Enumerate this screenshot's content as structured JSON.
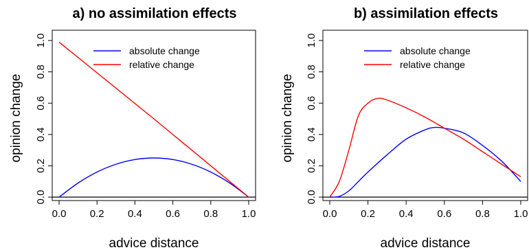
{
  "chart_data": [
    {
      "type": "line",
      "title": "a) no assimilation effects",
      "xlabel": "advice distance",
      "ylabel": "opinion change",
      "xlim": [
        0.0,
        1.0
      ],
      "ylim": [
        0.0,
        1.0
      ],
      "xticks": [
        "0.0",
        "0.2",
        "0.4",
        "0.6",
        "0.8",
        "1.0"
      ],
      "yticks": [
        "0.0",
        "0.2",
        "0.4",
        "0.6",
        "0.8",
        "1.0"
      ],
      "legend": "top-right",
      "grid": false,
      "horizontal_reference": 0.0,
      "series": [
        {
          "name": "absolute change",
          "color": "#0000ff",
          "x": [
            0.0,
            0.1,
            0.2,
            0.3,
            0.4,
            0.5,
            0.6,
            0.7,
            0.8,
            0.9,
            1.0
          ],
          "y": [
            0.0,
            0.09,
            0.16,
            0.21,
            0.24,
            0.25,
            0.24,
            0.21,
            0.16,
            0.09,
            0.0
          ]
        },
        {
          "name": "relative change",
          "color": "#ff0000",
          "x": [
            0.0,
            0.5,
            1.0
          ],
          "y": [
            0.99,
            0.5,
            0.0
          ]
        }
      ]
    },
    {
      "type": "line",
      "title": "b) assimilation effects",
      "xlabel": "advice distance",
      "ylabel": "opinion change",
      "xlim": [
        0.0,
        1.0
      ],
      "ylim": [
        0.0,
        1.0
      ],
      "xticks": [
        "0.0",
        "0.2",
        "0.4",
        "0.6",
        "0.8",
        "1.0"
      ],
      "yticks": [
        "0.0",
        "0.2",
        "0.4",
        "0.6",
        "0.8",
        "1.0"
      ],
      "legend": "top-right",
      "grid": false,
      "horizontal_reference": 0.0,
      "series": [
        {
          "name": "absolute change",
          "color": "#0000ff",
          "x": [
            0.0,
            0.05,
            0.1,
            0.15,
            0.2,
            0.3,
            0.4,
            0.5,
            0.55,
            0.6,
            0.7,
            0.8,
            0.9,
            1.0
          ],
          "y": [
            0.0,
            0.005,
            0.04,
            0.1,
            0.16,
            0.27,
            0.37,
            0.43,
            0.445,
            0.44,
            0.41,
            0.33,
            0.23,
            0.1
          ],
          "display_y": [
            0.0,
            0.005,
            0.04,
            0.1,
            0.16,
            0.27,
            0.37,
            0.43,
            0.445,
            0.44,
            0.41,
            0.33,
            0.23,
            0.1
          ]
        },
        {
          "name": "relative change",
          "color": "#ff0000",
          "x": [
            0.0,
            0.05,
            0.1,
            0.15,
            0.2,
            0.25,
            0.3,
            0.4,
            0.5,
            0.6,
            0.7,
            0.8,
            0.9,
            1.0
          ],
          "y": [
            0.0,
            0.1,
            0.3,
            0.52,
            0.6,
            0.63,
            0.62,
            0.57,
            0.51,
            0.44,
            0.37,
            0.29,
            0.21,
            0.13
          ],
          "display_y": [
            0.0,
            0.1,
            0.3,
            0.52,
            0.6,
            0.63,
            0.62,
            0.57,
            0.51,
            0.44,
            0.37,
            0.29,
            0.21,
            0.13
          ]
        }
      ]
    }
  ]
}
